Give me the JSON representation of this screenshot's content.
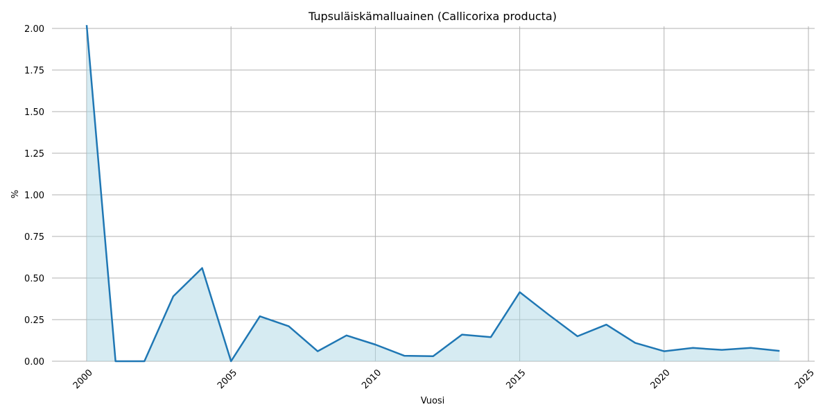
{
  "chart_data": {
    "type": "area",
    "title": "Tupsuläiskämalluainen (Callicorixa producta)",
    "xlabel": "Vuosi",
    "ylabel": "%",
    "xlim": [
      2000,
      2025
    ],
    "ylim": [
      0,
      2.0
    ],
    "xticks": [
      "2000",
      "2005",
      "2010",
      "2015",
      "2020",
      "2025"
    ],
    "yticks": [
      "0.00",
      "0.25",
      "0.50",
      "0.75",
      "1.00",
      "1.25",
      "1.50",
      "1.75",
      "2.00"
    ],
    "grid": true,
    "series": [
      {
        "x": [
          2000,
          2001,
          2002,
          2003,
          2004,
          2005,
          2006,
          2007,
          2008,
          2009,
          2010,
          2011,
          2012,
          2013,
          2014,
          2015,
          2016,
          2017,
          2018,
          2019,
          2020,
          2021,
          2022,
          2023,
          2024
        ],
        "values": [
          2.02,
          0.0,
          0.0,
          0.39,
          0.56,
          0.0,
          0.27,
          0.21,
          0.06,
          0.155,
          0.1,
          0.033,
          0.03,
          0.16,
          0.145,
          0.415,
          0.28,
          0.15,
          0.22,
          0.11,
          0.06,
          0.08,
          0.068,
          0.08,
          0.062
        ]
      }
    ],
    "colors": {
      "line": "#1f77b4",
      "fill": "#add8e6"
    }
  }
}
